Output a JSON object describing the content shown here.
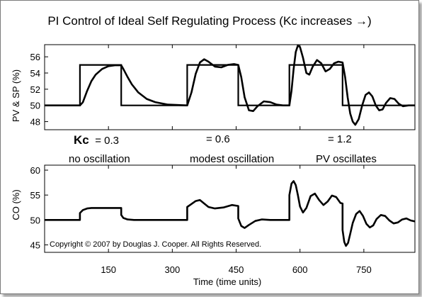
{
  "chart_data": {
    "type": "line",
    "title": "PI Control of Ideal Self Regulating Process (Kc increases →)",
    "xlabel": "Time (time units)",
    "x_ticks": [
      150,
      300,
      450,
      600,
      750
    ],
    "xlim": [
      0,
      870
    ],
    "grid": false,
    "colors": {
      "line": "#000000",
      "background": "#ffffff"
    },
    "panels": [
      {
        "name": "pv_sp",
        "ylabel": "PV & SP (%)",
        "ylim": [
          47,
          57.5
        ],
        "y_ticks": [
          48,
          50,
          52,
          54,
          56
        ],
        "series": [
          {
            "role": "SP",
            "x": [
              0,
              83,
              83,
              180,
              180,
              335,
              335,
              455,
              455,
              575,
              575,
              700,
              700,
              870
            ],
            "y": [
              50,
              50,
              55,
              55,
              50,
              50,
              55,
              55,
              50,
              50,
              55,
              55,
              50,
              50
            ]
          },
          {
            "role": "PV",
            "x": [
              0,
              83,
              90,
              100,
              110,
              120,
              135,
              150,
              165,
              180,
              185,
              195,
              205,
              220,
              240,
              260,
              290,
              335,
              345,
              355,
              365,
              375,
              385,
              400,
              415,
              430,
              445,
              455,
              462,
              470,
              480,
              490,
              500,
              515,
              530,
              545,
              560,
              575,
              580,
              585,
              590,
              595,
              600,
              607,
              615,
              622,
              630,
              640,
              650,
              660,
              670,
              680,
              690,
              700,
              706,
              712,
              718,
              724,
              730,
              738,
              746,
              754,
              762,
              770,
              778,
              786,
              794,
              802,
              812,
              822,
              832,
              842,
              855,
              870
            ],
            "y": [
              50,
              50,
              50.4,
              51.8,
              53.0,
              53.8,
              54.5,
              54.85,
              54.95,
              54.95,
              54.5,
              53.5,
              52.6,
              51.6,
              50.8,
              50.4,
              50.1,
              50.0,
              51.6,
              53.9,
              55.3,
              55.7,
              55.4,
              54.8,
              54.7,
              55.0,
              55.1,
              55.0,
              53.5,
              51.0,
              49.4,
              49.3,
              49.9,
              50.5,
              50.4,
              50.1,
              50.0,
              50.0,
              51.8,
              54.5,
              56.6,
              57.4,
              57.2,
              55.9,
              54.0,
              53.8,
              54.8,
              55.6,
              55.2,
              54.2,
              54.5,
              55.2,
              55.4,
              55.3,
              53.5,
              51.0,
              49.0,
              48.0,
              47.6,
              48.3,
              50.0,
              51.3,
              51.6,
              51.1,
              50.0,
              49.4,
              49.5,
              50.3,
              50.9,
              50.8,
              50.2,
              49.9,
              50.0,
              50.0
            ]
          }
        ]
      },
      {
        "name": "co",
        "ylabel": "CO (%)",
        "ylim": [
          43.5,
          61
        ],
        "y_ticks": [
          45,
          50,
          55,
          60
        ],
        "series": [
          {
            "role": "CO",
            "x": [
              0,
              83,
              83,
              90,
              100,
              110,
              120,
              140,
              160,
              180,
              180,
              185,
              195,
              210,
              230,
              260,
              300,
              335,
              335,
              345,
              355,
              365,
              375,
              385,
              400,
              420,
              440,
              455,
              455,
              462,
              470,
              480,
              495,
              510,
              530,
              550,
              575,
              575,
              580,
              585,
              590,
              595,
              600,
              607,
              615,
              625,
              635,
              645,
              655,
              665,
              675,
              685,
              695,
              700,
              700,
              704,
              708,
              713,
              718,
              724,
              732,
              740,
              748,
              756,
              764,
              772,
              780,
              790,
              800,
              810,
              820,
              830,
              840,
              850,
              860,
              870
            ],
            "y": [
              50,
              50,
              51.4,
              52.0,
              52.3,
              52.4,
              52.4,
              52.4,
              52.4,
              52.4,
              51.0,
              50.4,
              50.1,
              50.0,
              50.0,
              50.0,
              50.0,
              50.0,
              52.6,
              53.2,
              53.8,
              54.0,
              53.3,
              52.6,
              52.3,
              52.5,
              53.0,
              52.8,
              50.3,
              48.8,
              48.4,
              49.0,
              49.8,
              50.1,
              50.0,
              50.0,
              50.0,
              55.0,
              57.3,
              57.8,
              57.0,
              55.0,
              52.7,
              51.5,
              52.4,
              54.8,
              55.3,
              54.0,
              53.0,
              53.7,
              54.9,
              54.6,
              53.4,
              53.3,
              48.0,
              45.6,
              44.8,
              45.4,
              47.2,
              49.4,
              51.2,
              51.8,
              50.8,
              49.2,
              48.5,
              48.9,
              50.2,
              51.0,
              50.8,
              49.9,
              49.3,
              49.5,
              50.1,
              50.3,
              49.9,
              49.7
            ]
          }
        ]
      }
    ],
    "annotations": {
      "kc_symbol": "Kc",
      "kc_labels": [
        "= 0.3",
        "= 0.6",
        "= 1.2"
      ],
      "descriptions": [
        "no oscillation",
        "modest oscillation",
        "PV oscillates"
      ],
      "copyright": "Copyright © 2007 by Douglas J. Cooper. All Rights Reserved."
    }
  }
}
